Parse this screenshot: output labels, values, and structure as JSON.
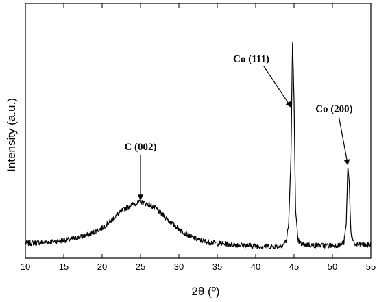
{
  "chart_data": {
    "type": "line",
    "xlabel": "2θ (º)",
    "ylabel": "Intensity (a.u.)",
    "xlim": [
      10,
      55
    ],
    "ylim": [
      0,
      100
    ],
    "x_ticks": [
      10,
      15,
      20,
      25,
      30,
      35,
      40,
      45,
      50,
      55
    ],
    "y_ticks_shown": false,
    "grid": false,
    "series": [
      {
        "x": [
          10,
          12,
          14,
          16,
          18,
          19,
          20,
          21,
          22,
          23,
          24,
          25,
          26,
          27,
          28,
          29,
          30,
          31,
          32,
          33,
          34,
          36,
          38,
          40,
          42,
          43,
          43.6,
          44.0,
          44.3,
          44.6,
          44.8,
          45.0,
          45.2,
          45.5,
          46,
          47,
          48,
          49,
          50,
          51,
          51.5,
          51.8,
          52.0,
          52.2,
          52.4,
          52.7,
          53,
          54,
          55
        ],
        "y": [
          2.5,
          3,
          3.5,
          4.5,
          6.5,
          8,
          10,
          13,
          16.5,
          19.5,
          21.5,
          22.5,
          21.5,
          19.5,
          16,
          12.5,
          9.5,
          7,
          5,
          3.8,
          3,
          2.2,
          1.8,
          1.2,
          1,
          1.2,
          2,
          4,
          12,
          45,
          100,
          72,
          18,
          4,
          2,
          1.8,
          1.5,
          1.5,
          1.5,
          1.8,
          3,
          12,
          40,
          31,
          8,
          3,
          2,
          1.8,
          1.8
        ]
      }
    ],
    "annotations": [
      {
        "text": "C (002)",
        "x": 25,
        "y": 23
      },
      {
        "text": "Co (111)",
        "x": 44.6,
        "y": 68
      },
      {
        "text": "Co (200)",
        "x": 52.0,
        "y": 40
      }
    ]
  }
}
